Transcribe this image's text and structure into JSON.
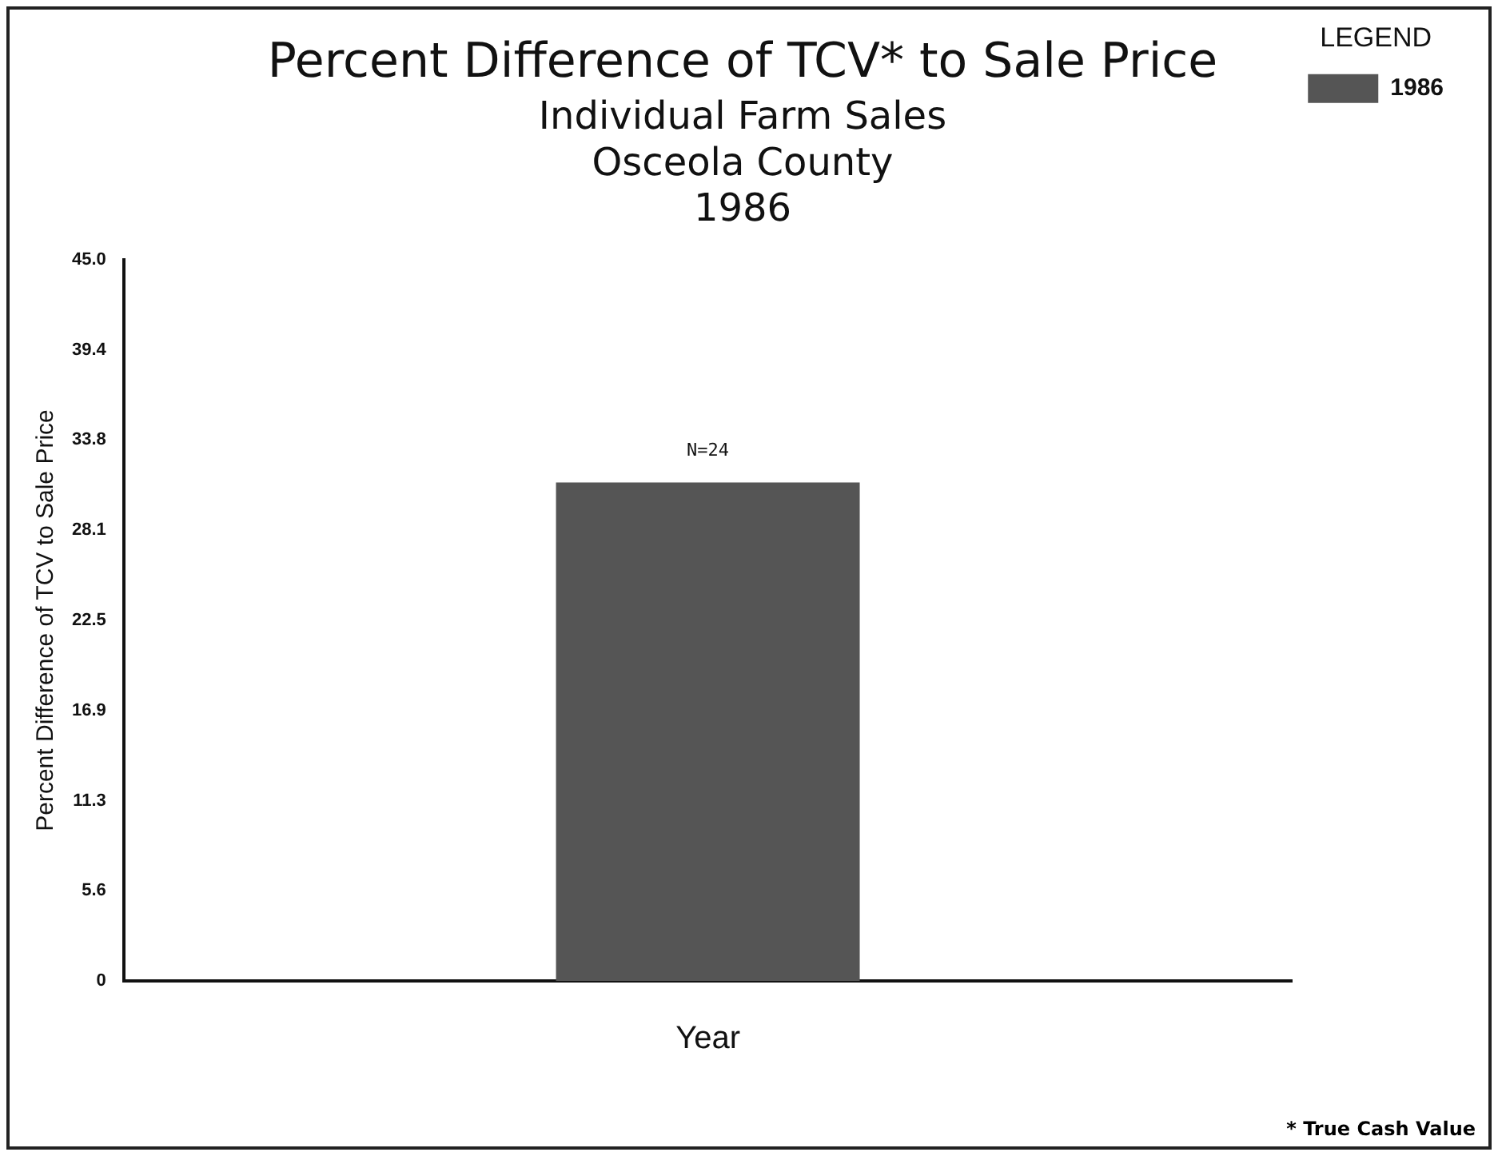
{
  "chart_data": {
    "type": "bar",
    "title": "Percent Difference of TCV* to Sale Price",
    "subtitle": "Individual Farm Sales\nOsceola County\n1986",
    "xlabel": "Year",
    "ylabel": "Percent Difference of TCV to Sale Price",
    "legend_title": "LEGEND",
    "categories": [
      null
    ],
    "series": [
      {
        "name": "1986",
        "color": "#555555",
        "values": [
          31.1
        ]
      }
    ],
    "ylim": [
      0,
      45
    ],
    "yticks": [
      0,
      {
        "value": 5.625,
        "label": "5.6"
      },
      {
        "value": 11.25,
        "label": "11.3"
      },
      {
        "value": 16.875,
        "label": "16.9"
      },
      {
        "value": 22.5,
        "label": "22.5"
      },
      {
        "value": 28.125,
        "label": "28.1"
      },
      {
        "value": 33.75,
        "label": "33.8"
      },
      {
        "value": 39.375,
        "label": "39.4"
      },
      {
        "value": 45,
        "label": "45.0"
      }
    ],
    "grid": false,
    "legend": "top right",
    "annotations": [
      {
        "text": "N=24",
        "y": 31.1
      },
      "* True Cash Value"
    ]
  }
}
